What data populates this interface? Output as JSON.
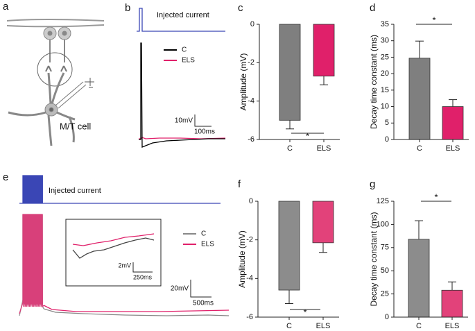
{
  "chart_data": [
    {
      "type": "bar",
      "panel": "c",
      "y_label": "Amplitude (mV)",
      "categories": [
        "C",
        "ELS"
      ],
      "values": [
        -5.0,
        -2.7
      ],
      "errors": [
        0.45,
        0.45
      ],
      "colors": [
        "#7f7f7f",
        "#e0206a"
      ],
      "ylim": [
        -6,
        0
      ],
      "yticks": [
        0,
        -2,
        -4,
        -6
      ],
      "annotation": "*"
    },
    {
      "type": "bar",
      "panel": "d",
      "y_label": "Decay time constant (ms)",
      "categories": [
        "C",
        "ELS"
      ],
      "values": [
        24.7,
        10
      ],
      "errors": [
        5.2,
        2.1
      ],
      "colors": [
        "#7f7f7f",
        "#e0206a"
      ],
      "ylim": [
        0,
        35
      ],
      "yticks": [
        0,
        5,
        10,
        15,
        20,
        25,
        30,
        35
      ],
      "annotation": "*"
    },
    {
      "type": "bar",
      "panel": "f",
      "y_label": "Amplitude (mV)",
      "categories": [
        "C",
        "ELS"
      ],
      "values": [
        -4.6,
        -2.15
      ],
      "errors": [
        0.7,
        0.5
      ],
      "colors": [
        "#8c8c8c",
        "#e2427a"
      ],
      "ylim": [
        -6,
        0
      ],
      "yticks": [
        0,
        -2,
        -4,
        -6
      ],
      "annotation": "*"
    },
    {
      "type": "bar",
      "panel": "g",
      "y_label": "Decay time constant (ms)",
      "categories": [
        "C",
        "ELS"
      ],
      "values": [
        84,
        29
      ],
      "errors": [
        20,
        9
      ],
      "colors": [
        "#8c8c8c",
        "#e2427a"
      ],
      "ylim": [
        0,
        125
      ],
      "yticks": [
        0,
        25,
        50,
        75,
        100,
        125
      ],
      "annotation": "*"
    }
  ],
  "panels": {
    "a": {
      "label": "a",
      "cell_label": "M/T cell"
    },
    "b": {
      "label": "b",
      "stimulus": "Injected current",
      "legend": [
        "C",
        "ELS"
      ],
      "scale_y": "10mV",
      "scale_x": "100ms"
    },
    "e": {
      "label": "e",
      "stimulus": "Injected current",
      "legend": [
        "C",
        "ELS"
      ],
      "inset_scale_y": "2mV",
      "inset_scale_x": "250ms",
      "scale_y": "20mV",
      "scale_x": "500ms"
    }
  }
}
